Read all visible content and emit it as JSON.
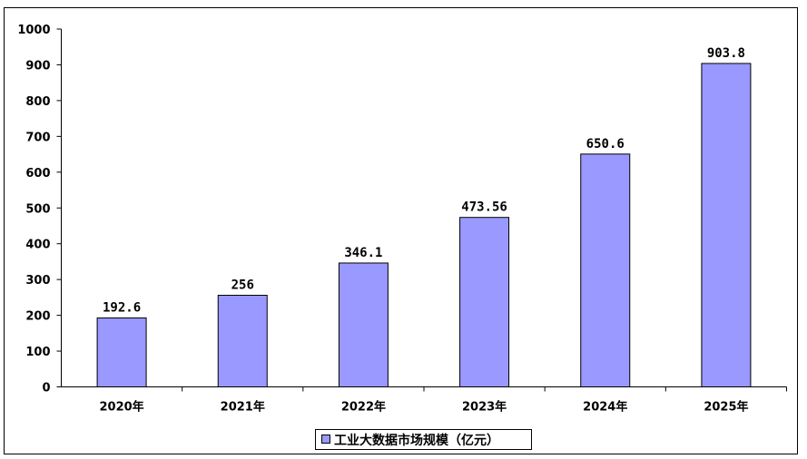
{
  "chart_data": {
    "type": "bar",
    "categories": [
      "2020年",
      "2021年",
      "2022年",
      "2023年",
      "2024年",
      "2025年"
    ],
    "series": [
      {
        "name": "工业大数据市场规模（亿元）",
        "values": [
          192.6,
          256,
          346.1,
          473.56,
          650.6,
          903.8
        ],
        "value_labels": [
          "192.6",
          "256",
          "346.1",
          "473.56",
          "650.6",
          "903.8"
        ],
        "color": "#9999ff"
      }
    ],
    "title": "",
    "xlabel": "",
    "ylabel": "",
    "ylim": [
      0,
      1000
    ],
    "yticks": [
      0,
      100,
      200,
      300,
      400,
      500,
      600,
      700,
      800,
      900,
      1000
    ],
    "grid": false,
    "legend": "bottom"
  }
}
